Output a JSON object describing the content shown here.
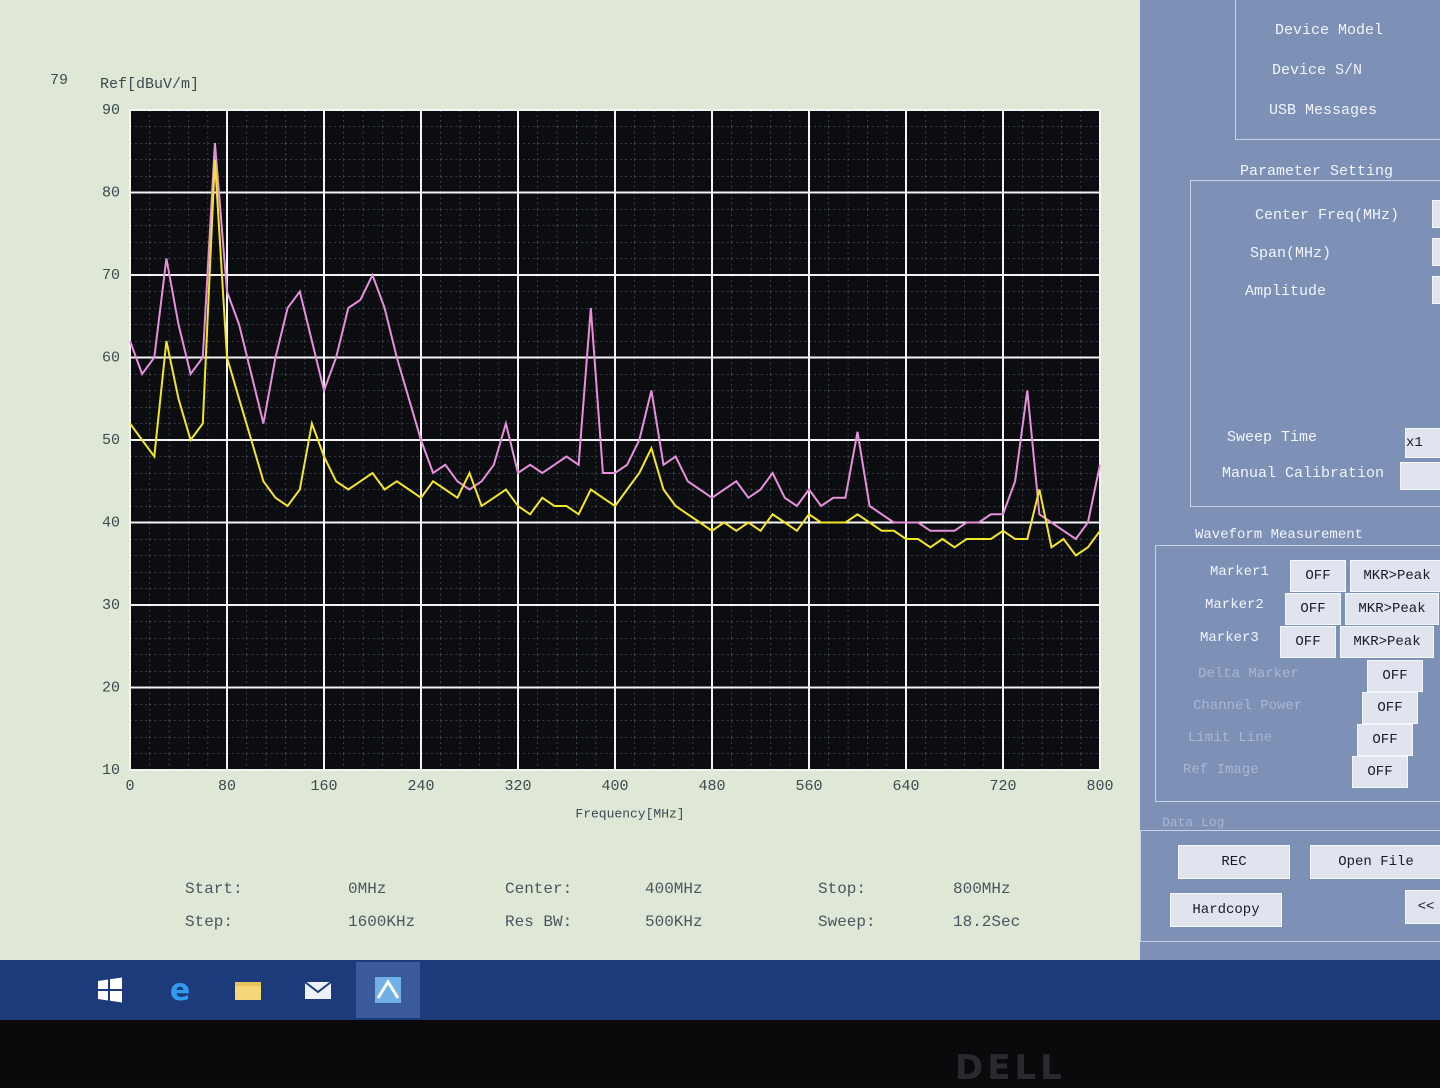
{
  "chart_data": {
    "type": "line",
    "title": "79",
    "ylabel": "Ref[dBuV/m]",
    "xlabel": "Frequency[MHz]",
    "x": [
      0,
      10,
      20,
      30,
      40,
      50,
      60,
      70,
      80,
      90,
      100,
      110,
      120,
      130,
      140,
      150,
      160,
      170,
      180,
      190,
      200,
      210,
      220,
      230,
      240,
      250,
      260,
      270,
      280,
      290,
      300,
      310,
      320,
      330,
      340,
      350,
      360,
      370,
      380,
      390,
      400,
      410,
      420,
      430,
      440,
      450,
      460,
      470,
      480,
      490,
      500,
      510,
      520,
      530,
      540,
      550,
      560,
      570,
      580,
      590,
      600,
      610,
      620,
      630,
      640,
      650,
      660,
      670,
      680,
      690,
      700,
      710,
      720,
      730,
      740,
      750,
      760,
      770,
      780,
      790,
      800
    ],
    "series": [
      {
        "color": "#e690dc",
        "values": [
          62,
          58,
          60,
          72,
          64,
          58,
          60,
          86,
          68,
          64,
          58,
          52,
          60,
          66,
          68,
          62,
          56,
          60,
          66,
          67,
          70,
          66,
          60,
          55,
          50,
          46,
          47,
          45,
          44,
          45,
          47,
          52,
          46,
          47,
          46,
          47,
          48,
          47,
          66,
          46,
          46,
          47,
          50,
          56,
          47,
          48,
          45,
          44,
          43,
          44,
          45,
          43,
          44,
          46,
          43,
          42,
          44,
          42,
          43,
          43,
          51,
          42,
          41,
          40,
          40,
          40,
          39,
          39,
          39,
          40,
          40,
          41,
          41,
          45,
          56,
          41,
          40,
          39,
          38,
          40,
          47
        ]
      },
      {
        "color": "#f2e629",
        "values": [
          52,
          50,
          48,
          62,
          55,
          50,
          52,
          84,
          60,
          55,
          50,
          45,
          43,
          42,
          44,
          52,
          48,
          45,
          44,
          45,
          46,
          44,
          45,
          44,
          43,
          45,
          44,
          43,
          46,
          42,
          43,
          44,
          42,
          41,
          43,
          42,
          42,
          41,
          44,
          43,
          42,
          44,
          46,
          49,
          44,
          42,
          41,
          40,
          39,
          40,
          39,
          40,
          39,
          41,
          40,
          39,
          41,
          40,
          40,
          40,
          41,
          40,
          39,
          39,
          38,
          38,
          37,
          38,
          37,
          38,
          38,
          38,
          39,
          38,
          38,
          44,
          37,
          38,
          36,
          37,
          39
        ]
      }
    ],
    "xlim": [
      0,
      800
    ],
    "ylim": [
      10,
      90
    ],
    "xticks": [
      0,
      80,
      160,
      240,
      320,
      400,
      480,
      560,
      640,
      720,
      800
    ],
    "yticks": [
      10,
      20,
      30,
      40,
      50,
      60,
      70,
      80,
      90
    ],
    "grid": true
  },
  "status": [
    {
      "label": "Start:",
      "value": "0MHz"
    },
    {
      "label": "Center:",
      "value": "400MHz"
    },
    {
      "label": "Stop:",
      "value": "800MHz"
    },
    {
      "label": "Step:",
      "value": "1600KHz"
    },
    {
      "label": "Res BW:",
      "value": "500KHz"
    },
    {
      "label": "Sweep:",
      "value": "18.2Sec"
    }
  ],
  "panel": {
    "device": [
      "Device Model",
      "Device S/N",
      "USB Messages"
    ],
    "parameter_setting": {
      "title": "Parameter Setting",
      "fields": [
        "Center Freq(MHz)",
        "Span(MHz)",
        "Amplitude"
      ],
      "sweep_time": {
        "label": "Sweep Time",
        "value": "x1"
      },
      "manual_calibration": "Manual Calibration"
    },
    "waveform": {
      "title": "Waveform Measurement",
      "markers": [
        {
          "label": "Marker1",
          "state": "OFF",
          "action": "MKR>Peak"
        },
        {
          "label": "Marker2",
          "state": "OFF",
          "action": "MKR>Peak"
        },
        {
          "label": "Marker3",
          "state": "OFF",
          "action": "MKR>Peak"
        }
      ],
      "toggles": [
        {
          "label": "Delta Marker",
          "state": "OFF"
        },
        {
          "label": "Channel Power",
          "state": "OFF"
        },
        {
          "label": "Limit Line",
          "state": "OFF"
        },
        {
          "label": "Ref Image",
          "state": "OFF"
        }
      ]
    },
    "data_log": {
      "title": "Data Log",
      "buttons": [
        "REC",
        "Open File",
        "Hardcopy",
        "<<"
      ]
    }
  },
  "bezel": {
    "brand": "DELL"
  }
}
